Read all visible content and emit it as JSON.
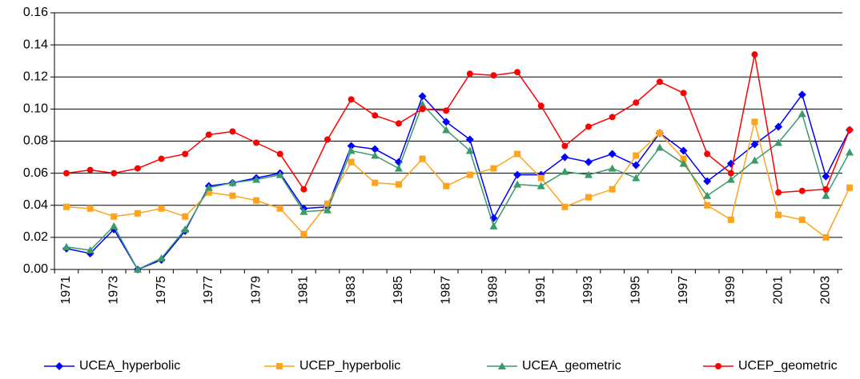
{
  "chart_data": {
    "type": "line",
    "categories": [
      "1971",
      null,
      "1973",
      null,
      "1975",
      null,
      "1977",
      null,
      "1979",
      null,
      "1981",
      null,
      "1983",
      null,
      "1985",
      null,
      "1987",
      null,
      "1989",
      null,
      "1991",
      null,
      "1993",
      null,
      "1995",
      null,
      "1997",
      null,
      "1999",
      null,
      "2001",
      null,
      "2003",
      null
    ],
    "ylim": [
      0,
      0.16
    ],
    "yticks": [
      {
        "value": 0,
        "label": "0.00"
      },
      {
        "value": 0.02,
        "label": "0.02"
      },
      {
        "value": 0.04,
        "label": "0.04"
      },
      {
        "value": 0.06,
        "label": "0.06"
      },
      {
        "value": 0.08,
        "label": "0.08"
      },
      {
        "value": 0.1,
        "label": "0.10"
      },
      {
        "value": 0.12,
        "label": "0.12"
      },
      {
        "value": 0.14,
        "label": "0.14"
      },
      {
        "value": 0.16,
        "label": "0.16"
      }
    ],
    "grid": true,
    "legend": "bottom",
    "series": [
      {
        "name": "UCEA_hyperbolic",
        "color": "#0000ff",
        "marker": "diamond",
        "values": [
          0.013,
          0.01,
          0.025,
          0.0,
          0.006,
          0.024,
          0.052,
          0.054,
          0.057,
          0.06,
          0.038,
          0.039,
          0.077,
          0.075,
          0.067,
          0.108,
          0.092,
          0.081,
          0.032,
          0.059,
          0.059,
          0.07,
          0.067,
          0.072,
          0.065,
          0.085,
          0.074,
          0.055,
          0.066,
          0.078,
          0.089,
          0.109,
          0.058,
          0.087
        ]
      },
      {
        "name": "UCEP_hyperbolic",
        "color": "#ffa31a",
        "marker": "square",
        "values": [
          0.039,
          0.038,
          0.033,
          0.035,
          0.038,
          0.033,
          0.048,
          0.046,
          0.043,
          0.038,
          0.022,
          0.041,
          0.067,
          0.054,
          0.053,
          0.069,
          0.052,
          0.059,
          0.063,
          0.072,
          0.057,
          0.039,
          0.045,
          0.05,
          0.071,
          0.085,
          0.069,
          0.04,
          0.031,
          0.092,
          0.034,
          0.031,
          0.02,
          0.051
        ]
      },
      {
        "name": "UCEA_geometric",
        "color": "#3a9a6a",
        "marker": "triangle",
        "values": [
          0.014,
          0.012,
          0.027,
          0.0,
          0.007,
          0.025,
          0.051,
          0.054,
          0.056,
          0.059,
          0.036,
          0.037,
          0.074,
          0.071,
          0.063,
          0.103,
          0.087,
          0.074,
          0.027,
          0.053,
          0.052,
          0.061,
          0.059,
          0.063,
          0.057,
          0.076,
          0.066,
          0.046,
          0.056,
          0.068,
          0.079,
          0.097,
          0.046,
          0.073
        ]
      },
      {
        "name": "UCEP_geometric",
        "color": "#ff0000",
        "marker": "circle",
        "values": [
          0.06,
          0.062,
          0.06,
          0.063,
          0.069,
          0.072,
          0.084,
          0.086,
          0.079,
          0.072,
          0.05,
          0.081,
          0.106,
          0.096,
          0.091,
          0.1,
          0.099,
          0.122,
          0.121,
          0.123,
          0.102,
          0.077,
          0.089,
          0.095,
          0.104,
          0.117,
          0.11,
          0.072,
          0.06,
          0.134,
          0.048,
          0.049,
          0.05,
          0.087
        ]
      }
    ]
  }
}
